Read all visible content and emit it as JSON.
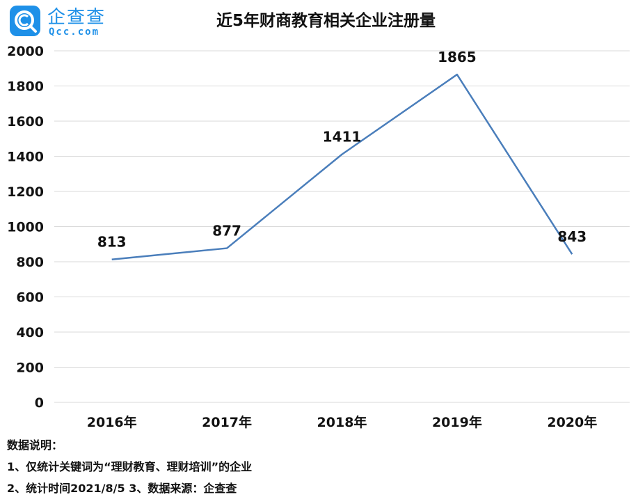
{
  "logo": {
    "name": "企查查",
    "domain": "Qcc.com",
    "icon": "search-magnifier-c-icon",
    "color": "#1e90e8"
  },
  "chart_data": {
    "type": "line",
    "title": "近5年财商教育相关企业注册量",
    "categories": [
      "2016年",
      "2017年",
      "2018年",
      "2019年",
      "2020年"
    ],
    "series": [
      {
        "values": [
          813,
          877,
          1411,
          1865,
          843
        ]
      }
    ],
    "data_labels": [
      "813",
      "877",
      "1411",
      "1865",
      "843"
    ],
    "y_ticks": [
      "0",
      "200",
      "400",
      "600",
      "800",
      "1000",
      "1200",
      "1400",
      "1600",
      "1800",
      "2000"
    ],
    "ylim": [
      0,
      2000
    ],
    "y_step": 200,
    "grid": true,
    "legend": "none",
    "line_color": "#4a7ebb",
    "grid_color": "#d9d9d9"
  },
  "notes": {
    "heading": "数据说明：",
    "line1": "1、仅统计关键词为“理财教育、理财培训”的企业",
    "line2": "2、统计时间2021/8/5   3、数据来源：企查查"
  }
}
